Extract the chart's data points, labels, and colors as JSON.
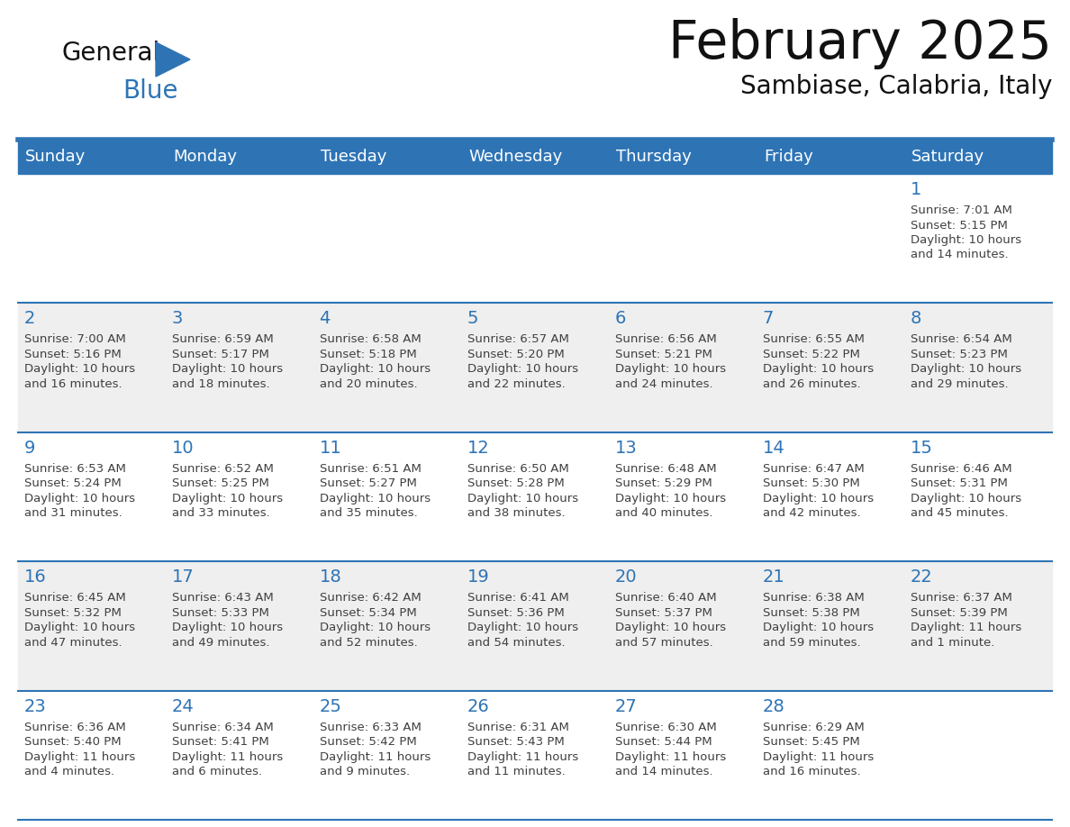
{
  "title": "February 2025",
  "subtitle": "Sambiase, Calabria, Italy",
  "days_of_week": [
    "Sunday",
    "Monday",
    "Tuesday",
    "Wednesday",
    "Thursday",
    "Friday",
    "Saturday"
  ],
  "header_bg": "#2E74B5",
  "header_text": "#FFFFFF",
  "cell_bg_odd": "#FFFFFF",
  "cell_bg_even": "#EFEFEF",
  "day_number_color": "#2E74B5",
  "text_color": "#404040",
  "line_color": "#2E74B5",
  "calendar_data": [
    [
      null,
      null,
      null,
      null,
      null,
      null,
      {
        "day": "1",
        "sunrise": "7:01 AM",
        "sunset": "5:15 PM",
        "daylight_line1": "Daylight: 10 hours",
        "daylight_line2": "and 14 minutes."
      }
    ],
    [
      {
        "day": "2",
        "sunrise": "7:00 AM",
        "sunset": "5:16 PM",
        "daylight_line1": "Daylight: 10 hours",
        "daylight_line2": "and 16 minutes."
      },
      {
        "day": "3",
        "sunrise": "6:59 AM",
        "sunset": "5:17 PM",
        "daylight_line1": "Daylight: 10 hours",
        "daylight_line2": "and 18 minutes."
      },
      {
        "day": "4",
        "sunrise": "6:58 AM",
        "sunset": "5:18 PM",
        "daylight_line1": "Daylight: 10 hours",
        "daylight_line2": "and 20 minutes."
      },
      {
        "day": "5",
        "sunrise": "6:57 AM",
        "sunset": "5:20 PM",
        "daylight_line1": "Daylight: 10 hours",
        "daylight_line2": "and 22 minutes."
      },
      {
        "day": "6",
        "sunrise": "6:56 AM",
        "sunset": "5:21 PM",
        "daylight_line1": "Daylight: 10 hours",
        "daylight_line2": "and 24 minutes."
      },
      {
        "day": "7",
        "sunrise": "6:55 AM",
        "sunset": "5:22 PM",
        "daylight_line1": "Daylight: 10 hours",
        "daylight_line2": "and 26 minutes."
      },
      {
        "day": "8",
        "sunrise": "6:54 AM",
        "sunset": "5:23 PM",
        "daylight_line1": "Daylight: 10 hours",
        "daylight_line2": "and 29 minutes."
      }
    ],
    [
      {
        "day": "9",
        "sunrise": "6:53 AM",
        "sunset": "5:24 PM",
        "daylight_line1": "Daylight: 10 hours",
        "daylight_line2": "and 31 minutes."
      },
      {
        "day": "10",
        "sunrise": "6:52 AM",
        "sunset": "5:25 PM",
        "daylight_line1": "Daylight: 10 hours",
        "daylight_line2": "and 33 minutes."
      },
      {
        "day": "11",
        "sunrise": "6:51 AM",
        "sunset": "5:27 PM",
        "daylight_line1": "Daylight: 10 hours",
        "daylight_line2": "and 35 minutes."
      },
      {
        "day": "12",
        "sunrise": "6:50 AM",
        "sunset": "5:28 PM",
        "daylight_line1": "Daylight: 10 hours",
        "daylight_line2": "and 38 minutes."
      },
      {
        "day": "13",
        "sunrise": "6:48 AM",
        "sunset": "5:29 PM",
        "daylight_line1": "Daylight: 10 hours",
        "daylight_line2": "and 40 minutes."
      },
      {
        "day": "14",
        "sunrise": "6:47 AM",
        "sunset": "5:30 PM",
        "daylight_line1": "Daylight: 10 hours",
        "daylight_line2": "and 42 minutes."
      },
      {
        "day": "15",
        "sunrise": "6:46 AM",
        "sunset": "5:31 PM",
        "daylight_line1": "Daylight: 10 hours",
        "daylight_line2": "and 45 minutes."
      }
    ],
    [
      {
        "day": "16",
        "sunrise": "6:45 AM",
        "sunset": "5:32 PM",
        "daylight_line1": "Daylight: 10 hours",
        "daylight_line2": "and 47 minutes."
      },
      {
        "day": "17",
        "sunrise": "6:43 AM",
        "sunset": "5:33 PM",
        "daylight_line1": "Daylight: 10 hours",
        "daylight_line2": "and 49 minutes."
      },
      {
        "day": "18",
        "sunrise": "6:42 AM",
        "sunset": "5:34 PM",
        "daylight_line1": "Daylight: 10 hours",
        "daylight_line2": "and 52 minutes."
      },
      {
        "day": "19",
        "sunrise": "6:41 AM",
        "sunset": "5:36 PM",
        "daylight_line1": "Daylight: 10 hours",
        "daylight_line2": "and 54 minutes."
      },
      {
        "day": "20",
        "sunrise": "6:40 AM",
        "sunset": "5:37 PM",
        "daylight_line1": "Daylight: 10 hours",
        "daylight_line2": "and 57 minutes."
      },
      {
        "day": "21",
        "sunrise": "6:38 AM",
        "sunset": "5:38 PM",
        "daylight_line1": "Daylight: 10 hours",
        "daylight_line2": "and 59 minutes."
      },
      {
        "day": "22",
        "sunrise": "6:37 AM",
        "sunset": "5:39 PM",
        "daylight_line1": "Daylight: 11 hours",
        "daylight_line2": "and 1 minute."
      }
    ],
    [
      {
        "day": "23",
        "sunrise": "6:36 AM",
        "sunset": "5:40 PM",
        "daylight_line1": "Daylight: 11 hours",
        "daylight_line2": "and 4 minutes."
      },
      {
        "day": "24",
        "sunrise": "6:34 AM",
        "sunset": "5:41 PM",
        "daylight_line1": "Daylight: 11 hours",
        "daylight_line2": "and 6 minutes."
      },
      {
        "day": "25",
        "sunrise": "6:33 AM",
        "sunset": "5:42 PM",
        "daylight_line1": "Daylight: 11 hours",
        "daylight_line2": "and 9 minutes."
      },
      {
        "day": "26",
        "sunrise": "6:31 AM",
        "sunset": "5:43 PM",
        "daylight_line1": "Daylight: 11 hours",
        "daylight_line2": "and 11 minutes."
      },
      {
        "day": "27",
        "sunrise": "6:30 AM",
        "sunset": "5:44 PM",
        "daylight_line1": "Daylight: 11 hours",
        "daylight_line2": "and 14 minutes."
      },
      {
        "day": "28",
        "sunrise": "6:29 AM",
        "sunset": "5:45 PM",
        "daylight_line1": "Daylight: 11 hours",
        "daylight_line2": "and 16 minutes."
      },
      null
    ]
  ],
  "figsize": [
    11.88,
    9.18
  ],
  "dpi": 100
}
